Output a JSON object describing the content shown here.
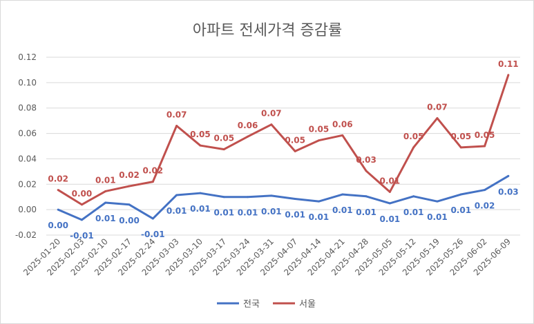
{
  "chart_data": {
    "type": "line",
    "title": "아파트 전세가격 증감률",
    "categories": [
      "2025-01-20",
      "2025-02-03",
      "2025-02-10",
      "2025-02-17",
      "2025-02-24",
      "2025-03-03",
      "2025-03-10",
      "2025-03-17",
      "2025-03-24",
      "2025-03-31",
      "2025-04-07",
      "2025-04-14",
      "2025-04-21",
      "2025-04-28",
      "2025-05-05",
      "2025-05-12",
      "2025-05-19",
      "2025-05-26",
      "2025-06-02",
      "2025-06-09"
    ],
    "y_ticks": [
      "-0.02",
      "0.00",
      "0.02",
      "0.04",
      "0.06",
      "0.08",
      "0.10",
      "0.12"
    ],
    "ylim": [
      -0.02,
      0.12
    ],
    "grid": true,
    "legend_position": "bottom",
    "series": [
      {
        "name": "전국",
        "color": "#4472C4",
        "values": [
          0.0,
          -0.008,
          0.0055,
          0.004,
          -0.007,
          0.0115,
          0.013,
          0.01,
          0.01,
          0.011,
          0.0085,
          0.0065,
          0.012,
          0.0105,
          0.005,
          0.0105,
          0.0065,
          0.012,
          0.0155,
          0.0265
        ],
        "labels": [
          "0.00",
          "-0.01",
          "0.01",
          "0.00",
          "-0.01",
          "0.01",
          "0.01",
          "0.01",
          "0.01",
          "0.01",
          "0.01",
          "0.01",
          "0.01",
          "0.01",
          "0.01",
          "0.01",
          "0.01",
          "0.01",
          "0.02",
          "0.03"
        ]
      },
      {
        "name": "서울",
        "color": "#C0504D",
        "values": [
          0.0155,
          0.004,
          0.0145,
          0.0185,
          0.022,
          0.066,
          0.0505,
          0.0475,
          0.0575,
          0.067,
          0.046,
          0.0545,
          0.0585,
          0.0305,
          0.014,
          0.049,
          0.072,
          0.049,
          0.05,
          0.106
        ],
        "labels": [
          "0.02",
          "0.00",
          "0.01",
          "0.02",
          "0.02",
          "0.07",
          "0.05",
          "0.05",
          "0.06",
          "0.07",
          "0.05",
          "0.05",
          "0.06",
          "0.03",
          "0.01",
          "0.05",
          "0.07",
          "0.05",
          "0.05",
          "0.11"
        ]
      }
    ]
  }
}
